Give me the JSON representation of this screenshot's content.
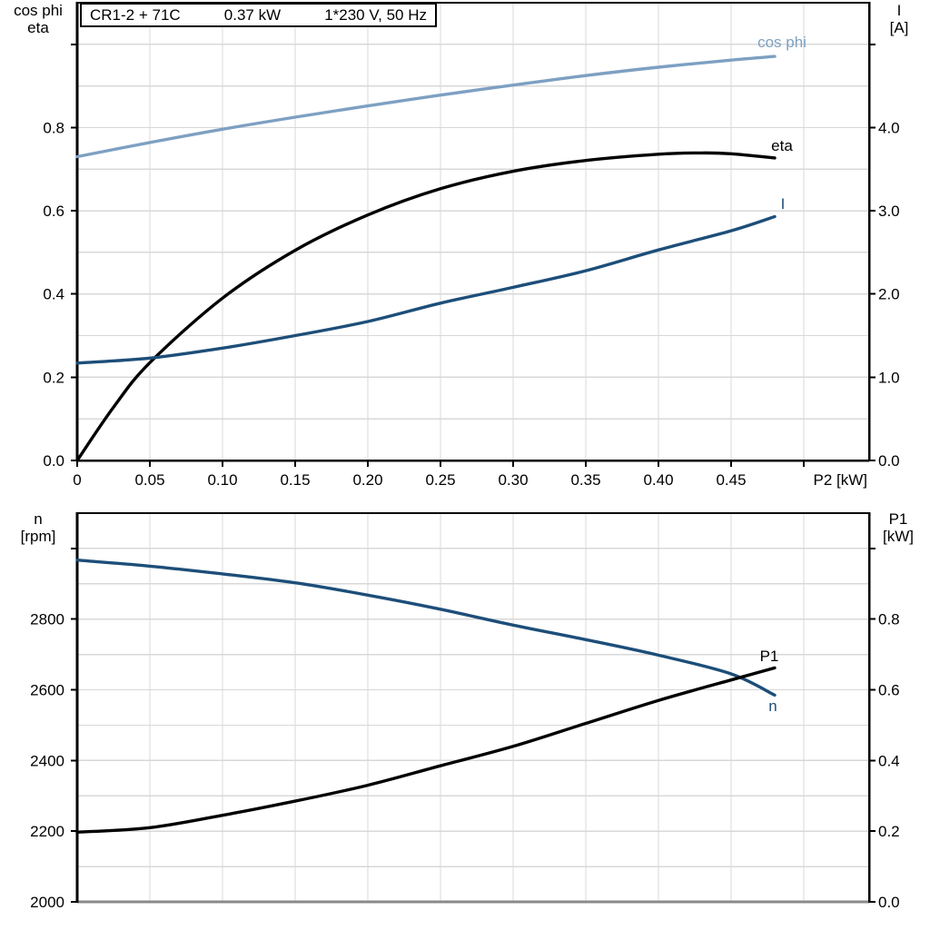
{
  "title_box": {
    "segments": [
      "CR1-2 + 71C",
      "0.37 kW",
      "1*230 V, 50 Hz"
    ]
  },
  "colors": {
    "black": "#000000",
    "dark_blue": "#1d4e79",
    "light_blue": "#7da0c2",
    "grid": "#d8d8d8",
    "frame_gray": "#8a8a8a",
    "background": "#ffffff"
  },
  "chart_data": [
    {
      "type": "line",
      "title": "CR1-2 + 71C  0.37 kW  1*230 V, 50 Hz",
      "x": {
        "label": "P2 [kW]",
        "min": 0,
        "max": 0.545,
        "grid_step": 0.05,
        "ticks": [
          0,
          0.05,
          0.1,
          0.15,
          0.2,
          0.25,
          0.3,
          0.35,
          0.4,
          0.45
        ],
        "tick_labels": [
          "0",
          "0.05",
          "0.10",
          "0.15",
          "0.20",
          "0.25",
          "0.30",
          "0.35",
          "0.40",
          "0.45"
        ],
        "extra_ticks": [
          0.5
        ]
      },
      "y_left": {
        "label_lines": [
          "cos phi",
          "eta"
        ],
        "min": 0,
        "max": 1.1,
        "grid_step": 0.1,
        "ticks": [
          0.0,
          0.2,
          0.4,
          0.6,
          0.8
        ],
        "tick_labels": [
          "0.0",
          "0.2",
          "0.4",
          "0.6",
          "0.8"
        ],
        "extra_ticks": [
          1.0
        ]
      },
      "y_right": {
        "label_lines": [
          "I",
          "[A]"
        ],
        "min": 0,
        "max": 5.5,
        "ticks": [
          0.0,
          1.0,
          2.0,
          3.0,
          4.0
        ],
        "tick_labels": [
          "0.0",
          "1.0",
          "2.0",
          "3.0",
          "4.0"
        ],
        "extra_ticks": [
          5.0
        ]
      },
      "series": [
        {
          "name": "cos phi",
          "axis": "left",
          "color_key": "light_blue",
          "x": [
            0,
            0.05,
            0.1,
            0.15,
            0.2,
            0.25,
            0.3,
            0.35,
            0.4,
            0.45,
            0.48
          ],
          "values": [
            0.73,
            0.764,
            0.796,
            0.825,
            0.852,
            0.878,
            0.902,
            0.925,
            0.945,
            0.962,
            0.971
          ]
        },
        {
          "name": "eta",
          "axis": "left",
          "color_key": "black",
          "x": [
            0,
            0.025,
            0.05,
            0.1,
            0.15,
            0.2,
            0.25,
            0.3,
            0.35,
            0.4,
            0.43,
            0.45,
            0.48
          ],
          "values": [
            0.0,
            0.128,
            0.235,
            0.39,
            0.505,
            0.59,
            0.653,
            0.695,
            0.721,
            0.736,
            0.739,
            0.737,
            0.727
          ]
        },
        {
          "name": "I",
          "axis": "right",
          "color_key": "dark_blue",
          "x": [
            0,
            0.05,
            0.1,
            0.15,
            0.2,
            0.25,
            0.3,
            0.35,
            0.4,
            0.45,
            0.48
          ],
          "values": [
            1.17,
            1.23,
            1.35,
            1.5,
            1.67,
            1.89,
            2.08,
            2.28,
            2.53,
            2.76,
            2.93
          ]
        }
      ]
    },
    {
      "type": "line",
      "title": "",
      "x": {
        "label": "",
        "min": 0,
        "max": 0.545,
        "grid_step": 0.05,
        "ticks": [],
        "tick_labels": [],
        "extra_ticks": []
      },
      "y_left": {
        "label_lines": [
          "n",
          "[rpm]"
        ],
        "min": 2000,
        "max": 3100,
        "grid_step": 100,
        "ticks": [
          2000,
          2200,
          2400,
          2600,
          2800
        ],
        "tick_labels": [
          "2000",
          "2200",
          "2400",
          "2600",
          "2800"
        ],
        "extra_ticks": [
          3000
        ]
      },
      "y_right": {
        "label_lines": [
          "P1",
          "[kW]"
        ],
        "min": 0,
        "max": 1.1,
        "ticks": [
          0.0,
          0.2,
          0.4,
          0.6,
          0.8
        ],
        "tick_labels": [
          "0.0",
          "0.2",
          "0.4",
          "0.6",
          "0.8"
        ],
        "extra_ticks": [
          1.0
        ]
      },
      "series": [
        {
          "name": "n",
          "axis": "left",
          "color_key": "dark_blue",
          "x": [
            0,
            0.05,
            0.1,
            0.15,
            0.2,
            0.25,
            0.3,
            0.35,
            0.4,
            0.45,
            0.48
          ],
          "values": [
            2967,
            2950,
            2928,
            2903,
            2868,
            2828,
            2783,
            2742,
            2698,
            2645,
            2585
          ]
        },
        {
          "name": "P1",
          "axis": "right",
          "color_key": "black",
          "x": [
            0,
            0.05,
            0.1,
            0.15,
            0.2,
            0.25,
            0.3,
            0.35,
            0.4,
            0.45,
            0.48
          ],
          "values": [
            0.197,
            0.21,
            0.245,
            0.285,
            0.33,
            0.385,
            0.44,
            0.505,
            0.57,
            0.628,
            0.662
          ]
        }
      ]
    }
  ]
}
